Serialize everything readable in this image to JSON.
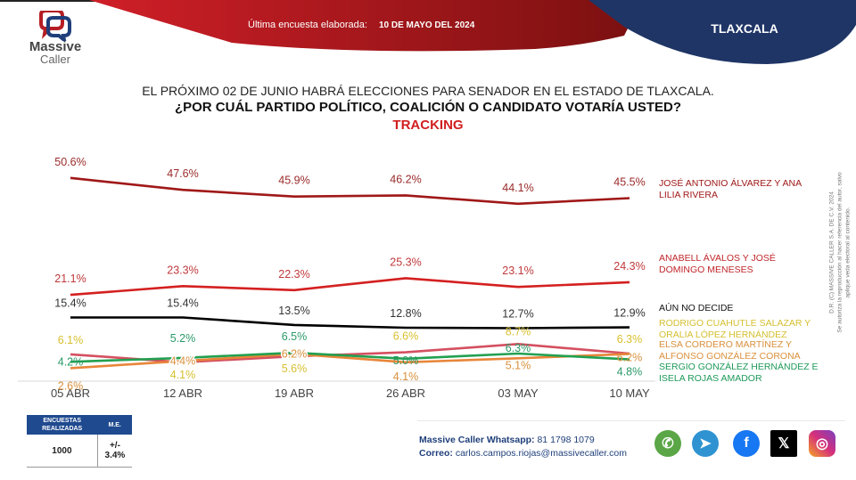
{
  "header": {
    "brand_line1": "Massive",
    "brand_line2": "Caller",
    "last_survey_label": "Última encuesta elaborada:",
    "last_survey_date": "10 DE MAYO DEL 2024",
    "state": "TLAXCALA"
  },
  "titles": {
    "line1": "EL PRÓXIMO 02 DE JUNIO HABRÁ ELECCIONES PARA SENADOR EN EL ESTADO DE TLAXCALA.",
    "line2": "¿POR CUÁL PARTIDO POLÍTICO, COALICIÓN O CANDIDATO VOTARÍA USTED?",
    "line3": "TRACKING"
  },
  "chart_data": {
    "type": "line",
    "title": "TRACKING",
    "categories": [
      "05 ABR",
      "12 ABR",
      "19 ABR",
      "26 ABR",
      "03 MAY",
      "10 MAY"
    ],
    "xlabel": "",
    "ylabel": "",
    "ylim": [
      0,
      55
    ],
    "grid": false,
    "legend_position": "right",
    "series": [
      {
        "name": "JOSÉ ANTONIO ÁLVAREZ  Y ANA LILIA RIVERA",
        "color": "#a01818",
        "label_color": "#9b2a2a",
        "values": [
          50.6,
          47.6,
          45.9,
          46.2,
          44.1,
          45.5
        ],
        "labels": [
          "50.6%",
          "47.6%",
          "45.9%",
          "46.2%",
          "44.1%",
          "45.5%"
        ]
      },
      {
        "name": "ANABELL ÁVALOS Y JOSÉ DOMINGO MENESES",
        "color": "#d42020",
        "label_color": "#c0393b",
        "values": [
          21.1,
          23.3,
          22.3,
          25.3,
          23.1,
          24.3
        ],
        "labels": [
          "21.1%",
          "23.3%",
          "22.3%",
          "25.3%",
          "23.1%",
          "24.3%"
        ]
      },
      {
        "name": "AÚN NO DECIDE",
        "color": "#000000",
        "label_color": "#333333",
        "values": [
          15.4,
          15.4,
          13.5,
          12.8,
          12.7,
          12.9
        ],
        "labels": [
          "15.4%",
          "15.4%",
          "13.5%",
          "12.8%",
          "12.7%",
          "12.9%"
        ]
      },
      {
        "name": "RODRIGO CUAHUTLE SALAZAR Y ORALIA LÓPEZ HERNÁNDEZ",
        "color": "#d45060",
        "label_color": "#d8c030",
        "values": [
          6.1,
          4.1,
          5.6,
          6.6,
          8.7,
          6.3
        ],
        "labels": [
          "6.1%",
          "4.1%",
          "5.6%",
          "6.6%",
          "8.7%",
          "6.3%"
        ]
      },
      {
        "name": "ELSA CORDERO MARTÍNEZ Y ALFONSO GONZÁLEZ CORONA",
        "color": "#e8863a",
        "label_color": "#d9903c",
        "values": [
          2.6,
          4.4,
          6.2,
          4.1,
          5.1,
          6.2
        ],
        "labels": [
          "2.6%",
          "4.4%",
          "6.2%",
          "4.1%",
          "5.1%",
          "6.2%"
        ]
      },
      {
        "name": "SERGIO GONZÁLEZ HERNÁNDEZ  E ISELA ROJAS AMADOR",
        "color": "#22a050",
        "label_color": "#2a9a68",
        "values": [
          4.2,
          5.2,
          6.5,
          5.0,
          6.3,
          4.8
        ],
        "labels": [
          "4.2%",
          "5.2%",
          "6.5%",
          "5.0%",
          "6.3%",
          "4.8%"
        ]
      }
    ]
  },
  "legend": [
    {
      "text": "JOSÉ ANTONIO ÁLVAREZ  Y ANA LILIA RIVERA",
      "color": "#a01818"
    },
    {
      "text": "ANABELL ÁVALOS Y JOSÉ DOMINGO MENESES",
      "color": "#c0262b"
    },
    {
      "text": "AÚN NO DECIDE",
      "color": "#111111"
    },
    {
      "text": "RODRIGO CUAHUTLE SALAZAR Y ORALIA LÓPEZ HERNÁNDEZ",
      "color": "#d4c030"
    },
    {
      "text": "ELSA CORDERO MARTÍNEZ Y ALFONSO GONZÁLEZ CORONA",
      "color": "#d9903c"
    },
    {
      "text": "SERGIO GONZÁLEZ HERNÁNDEZ  E ISELA ROJAS AMADOR",
      "color": "#1f9a5a"
    }
  ],
  "copyright": {
    "line1": "D.R. (C) MASSIVE CALLER S.A. DE C.V. 2024",
    "line2": "Se autoriza la reproducción al hacer referencia del autor, salvo aplique veda electoral al contenido."
  },
  "stats": {
    "col1_header": "ENCUESTAS REALIZADAS",
    "col2_header": "M.E.",
    "col1_value": "1000",
    "col2_value": "+/- 3.4%"
  },
  "contact": {
    "whatsapp_label": "Massive Caller Whatsapp:",
    "whatsapp_number": "81 1798 1079",
    "email_label": "Correo:",
    "email": "carlos.campos.riojas@massivecaller.com"
  },
  "social": [
    {
      "name": "whatsapp",
      "color": "#5ba646",
      "glyph": "✆"
    },
    {
      "name": "telegram",
      "color": "#2f93d1",
      "glyph": "➤"
    },
    {
      "name": "facebook",
      "color": "#1877f2",
      "glyph": "f"
    },
    {
      "name": "x",
      "color": "#000000",
      "glyph": "𝕏"
    },
    {
      "name": "instagram",
      "color": "#d6307a",
      "glyph": "◎"
    }
  ],
  "colors": {
    "header_red": "#b01822",
    "header_blue": "#1f3566",
    "accent_red": "#d11f1f",
    "table_blue": "#1f4a8f"
  }
}
